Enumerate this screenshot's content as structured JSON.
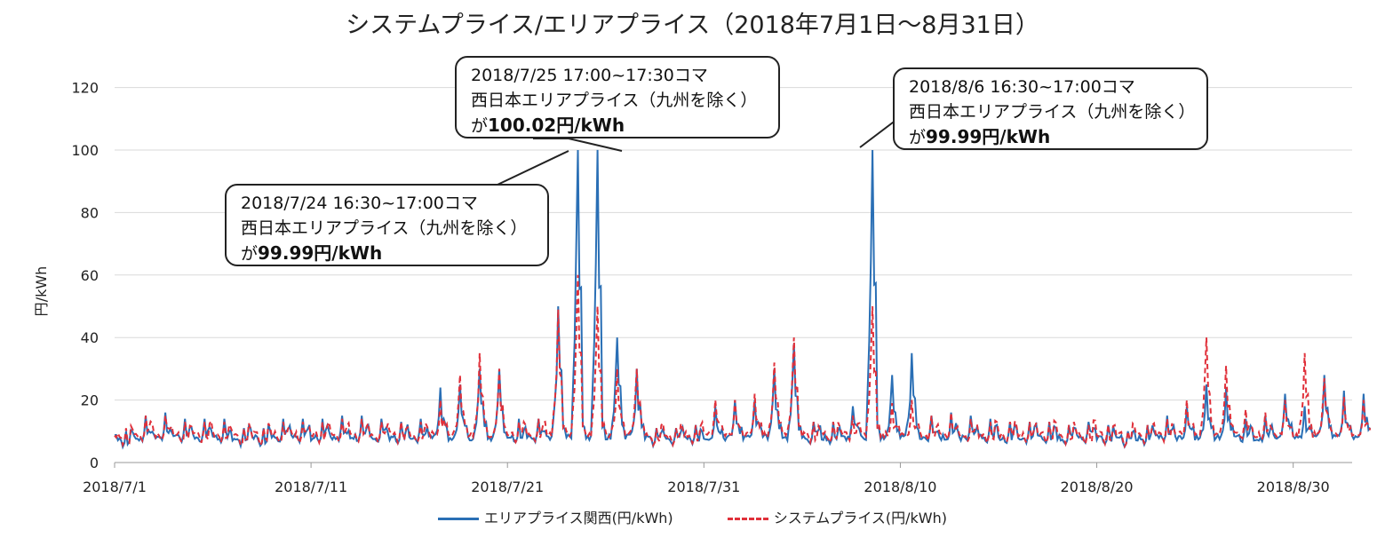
{
  "chart_data": {
    "type": "line",
    "title": "システムプライス/エリアプライス（2018年7月1日～8月31日）",
    "ylabel": "円/kWh",
    "xlabel": "",
    "ylim": [
      0,
      130
    ],
    "yticks": [
      0,
      20,
      40,
      60,
      80,
      100,
      120
    ],
    "xlim": [
      "2018/7/1",
      "2018/8/31"
    ],
    "xticks": [
      "2018/7/1",
      "2018/7/11",
      "2018/7/21",
      "2018/7/31",
      "2018/8/10",
      "2018/8/20",
      "2018/8/30"
    ],
    "grid": true,
    "legend_position": "bottom",
    "series": [
      {
        "name": "エリアプライス関西(円/kWh)",
        "color": "#2a6fb5",
        "style": "solid",
        "daily_peaks": [
          [
            1,
            10
          ],
          [
            2,
            15
          ],
          [
            3,
            16
          ],
          [
            4,
            14
          ],
          [
            5,
            14
          ],
          [
            6,
            14
          ],
          [
            7,
            11
          ],
          [
            8,
            11
          ],
          [
            9,
            14
          ],
          [
            10,
            14
          ],
          [
            11,
            14
          ],
          [
            12,
            15
          ],
          [
            13,
            15
          ],
          [
            14,
            14
          ],
          [
            15,
            13
          ],
          [
            16,
            14
          ],
          [
            17,
            24
          ],
          [
            18,
            25
          ],
          [
            19,
            30
          ],
          [
            20,
            30
          ],
          [
            21,
            14
          ],
          [
            22,
            14
          ],
          [
            23,
            50
          ],
          [
            24,
            100
          ],
          [
            25,
            100.02
          ],
          [
            26,
            40
          ],
          [
            27,
            30
          ],
          [
            28,
            11
          ],
          [
            29,
            11
          ],
          [
            30,
            12
          ],
          [
            31,
            18
          ],
          [
            32,
            20
          ],
          [
            33,
            20
          ],
          [
            34,
            30
          ],
          [
            35,
            38
          ],
          [
            36,
            13
          ],
          [
            37,
            13
          ],
          [
            38,
            18
          ],
          [
            39,
            99.99
          ],
          [
            40,
            28
          ],
          [
            41,
            35
          ],
          [
            42,
            15
          ],
          [
            43,
            16
          ],
          [
            44,
            15
          ],
          [
            45,
            14
          ],
          [
            46,
            13
          ],
          [
            47,
            13
          ],
          [
            48,
            13
          ],
          [
            49,
            12
          ],
          [
            50,
            13
          ],
          [
            51,
            12
          ],
          [
            52,
            10
          ],
          [
            53,
            12
          ],
          [
            54,
            15
          ],
          [
            55,
            18
          ],
          [
            56,
            25
          ],
          [
            57,
            24
          ],
          [
            58,
            14
          ],
          [
            59,
            15
          ],
          [
            60,
            22
          ],
          [
            61,
            18
          ],
          [
            62,
            28
          ],
          [
            63,
            23
          ],
          [
            64,
            22
          ]
        ]
      },
      {
        "name": "システムプライス(円/kWh)",
        "color": "#e0303a",
        "style": "dashed",
        "daily_peaks": [
          [
            1,
            11
          ],
          [
            2,
            15
          ],
          [
            3,
            15
          ],
          [
            4,
            13
          ],
          [
            5,
            13
          ],
          [
            6,
            13
          ],
          [
            7,
            11
          ],
          [
            8,
            11
          ],
          [
            9,
            13
          ],
          [
            10,
            13
          ],
          [
            11,
            13
          ],
          [
            12,
            14
          ],
          [
            13,
            14
          ],
          [
            14,
            13
          ],
          [
            15,
            13
          ],
          [
            16,
            13
          ],
          [
            17,
            20
          ],
          [
            18,
            28
          ],
          [
            19,
            35
          ],
          [
            20,
            30
          ],
          [
            21,
            13
          ],
          [
            22,
            14
          ],
          [
            23,
            49
          ],
          [
            24,
            60
          ],
          [
            25,
            50
          ],
          [
            26,
            30
          ],
          [
            27,
            30
          ],
          [
            28,
            11
          ],
          [
            29,
            11
          ],
          [
            30,
            12
          ],
          [
            31,
            20
          ],
          [
            32,
            20
          ],
          [
            33,
            22
          ],
          [
            34,
            32
          ],
          [
            35,
            40
          ],
          [
            36,
            13
          ],
          [
            37,
            13
          ],
          [
            38,
            15
          ],
          [
            39,
            50
          ],
          [
            40,
            19
          ],
          [
            41,
            20
          ],
          [
            42,
            15
          ],
          [
            43,
            16
          ],
          [
            44,
            14
          ],
          [
            45,
            13
          ],
          [
            46,
            13
          ],
          [
            47,
            13
          ],
          [
            48,
            13
          ],
          [
            49,
            12
          ],
          [
            50,
            12
          ],
          [
            51,
            12
          ],
          [
            52,
            10
          ],
          [
            53,
            12
          ],
          [
            54,
            14
          ],
          [
            55,
            20
          ],
          [
            56,
            40
          ],
          [
            57,
            31
          ],
          [
            58,
            17
          ],
          [
            59,
            16
          ],
          [
            60,
            20
          ],
          [
            61,
            35
          ],
          [
            62,
            27
          ],
          [
            63,
            21
          ],
          [
            64,
            20
          ]
        ]
      }
    ],
    "annotations": [
      {
        "line1": "2018/7/25  17:00~17:30コマ",
        "line2": "西日本エリアプライス（九州を除く）",
        "line3_prefix": "が",
        "line3_value": "100.02円/kWh"
      },
      {
        "line1": "2018/8/6  16:30~17:00コマ",
        "line2": "西日本エリアプライス（九州を除く）",
        "line3_prefix": "が",
        "line3_value": "99.99円/kWh"
      },
      {
        "line1": "2018/7/24  16:30~17:00コマ",
        "line2": "西日本エリアプライス（九州を除く）",
        "line3_prefix": "が",
        "line3_value": "99.99円/kWh"
      }
    ]
  }
}
